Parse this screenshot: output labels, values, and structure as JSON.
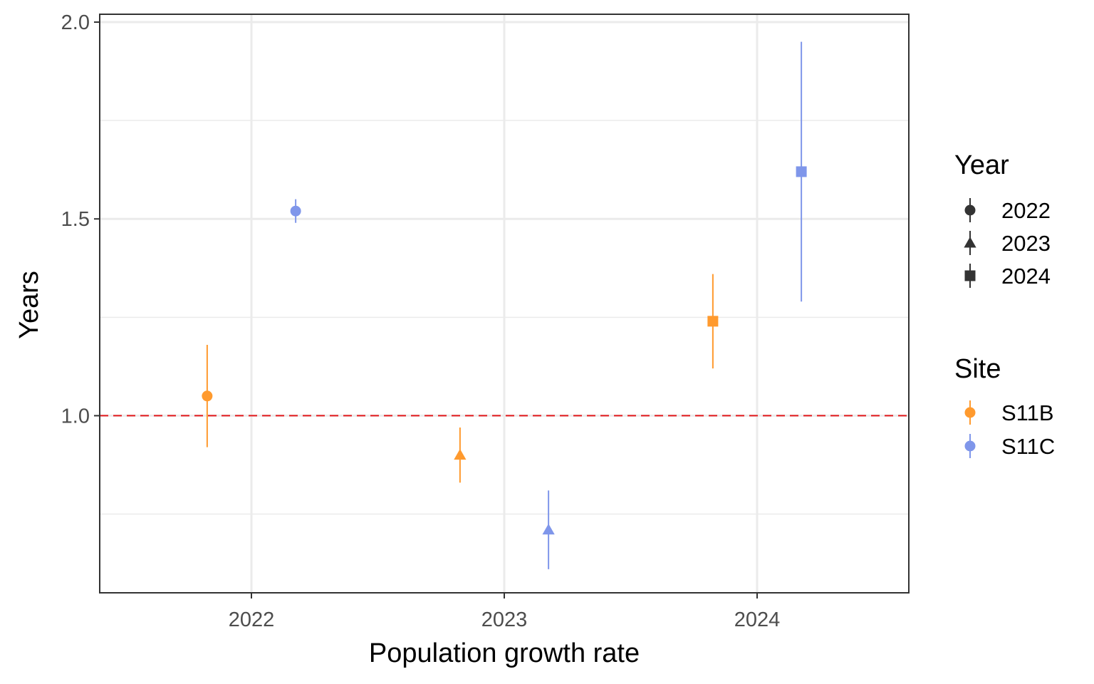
{
  "chart_data": {
    "type": "scatter",
    "title": "",
    "xlabel": "Population growth rate",
    "ylabel": "Years",
    "x_ticks": [
      "2022",
      "2023",
      "2024"
    ],
    "y_ticks": [
      "1.0",
      "1.5",
      "2.0"
    ],
    "xlim": [
      2021.4,
      2024.6
    ],
    "ylim": [
      0.55,
      2.02
    ],
    "grid": true,
    "reference_line": {
      "y": 1.0,
      "color": "#e41a1c",
      "style": "dashed"
    },
    "series": [
      {
        "name": "S11B",
        "color": "#ff9a2e",
        "points": [
          {
            "year": "2022",
            "x": 2021.825,
            "y": 1.05,
            "ymin": 0.92,
            "ymax": 1.18
          },
          {
            "year": "2023",
            "x": 2022.825,
            "y": 0.9,
            "ymin": 0.83,
            "ymax": 0.97
          },
          {
            "year": "2024",
            "x": 2023.825,
            "y": 1.24,
            "ymin": 1.12,
            "ymax": 1.36
          }
        ]
      },
      {
        "name": "S11C",
        "color": "#7f96ea",
        "points": [
          {
            "year": "2022",
            "x": 2022.175,
            "y": 1.52,
            "ymin": 1.49,
            "ymax": 1.55
          },
          {
            "year": "2023",
            "x": 2023.175,
            "y": 0.71,
            "ymin": 0.61,
            "ymax": 0.81
          },
          {
            "year": "2024",
            "x": 2024.175,
            "y": 1.62,
            "ymin": 1.29,
            "ymax": 1.95
          }
        ]
      }
    ],
    "legends": [
      {
        "title": "Year",
        "items": [
          {
            "label": "2022",
            "shape": "circle"
          },
          {
            "label": "2023",
            "shape": "triangle"
          },
          {
            "label": "2024",
            "shape": "square"
          }
        ]
      },
      {
        "title": "Site",
        "items": [
          {
            "label": "S11B",
            "color": "#ff9a2e"
          },
          {
            "label": "S11C",
            "color": "#7f96ea"
          }
        ]
      }
    ],
    "legend_position": "right",
    "shape_by_year": {
      "2022": "circle",
      "2023": "triangle",
      "2024": "square"
    }
  }
}
